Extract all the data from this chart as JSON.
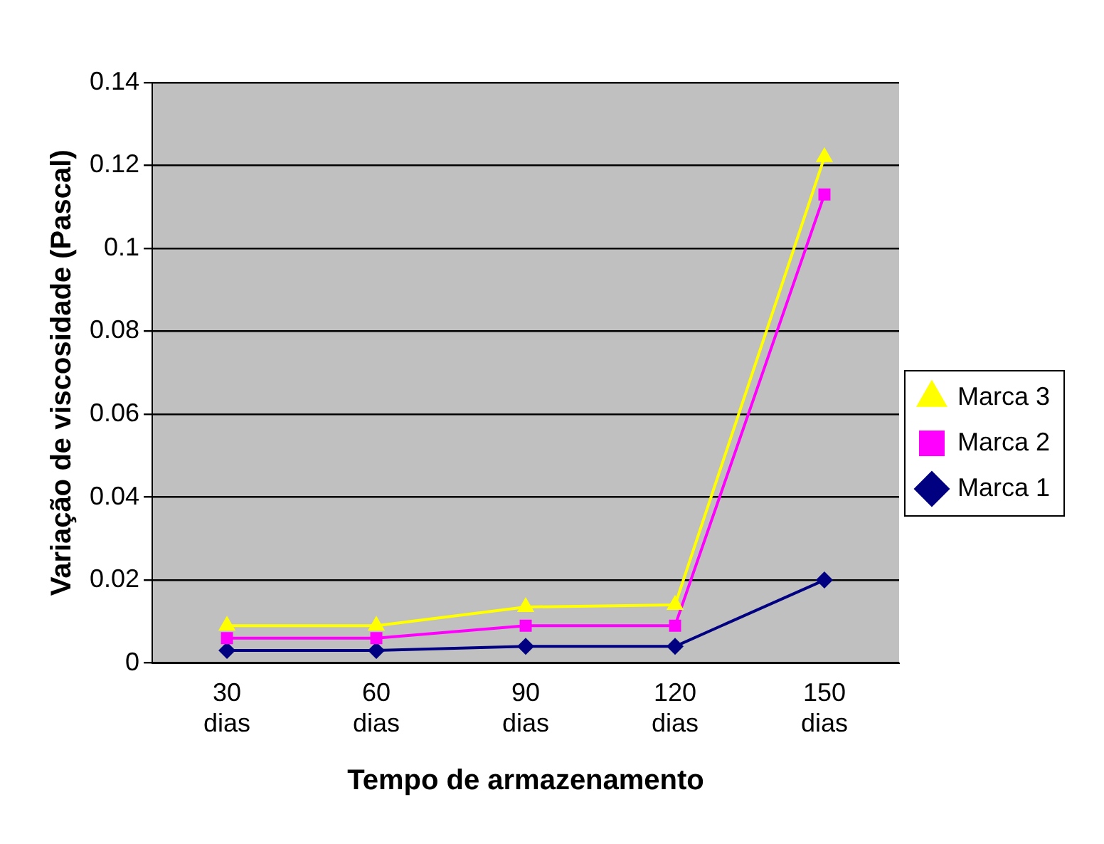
{
  "chart_data": {
    "type": "line",
    "xlabel": "Tempo de armazenamento",
    "ylabel": "Variação de viscosidade (Pascal)",
    "categories": [
      "30 dias",
      "60 dias",
      "90 dias",
      "120 dias",
      "150 dias"
    ],
    "series": [
      {
        "name": "Marca 3",
        "color": "#ffff00",
        "marker": "triangle",
        "values": [
          0.009,
          0.009,
          0.0135,
          0.014,
          0.122
        ]
      },
      {
        "name": "Marca 2",
        "color": "#ff00ff",
        "marker": "square",
        "values": [
          0.006,
          0.006,
          0.009,
          0.009,
          0.113
        ]
      },
      {
        "name": "Marca 1",
        "color": "#000080",
        "marker": "diamond",
        "values": [
          0.003,
          0.003,
          0.004,
          0.004,
          0.02
        ]
      }
    ],
    "ylim": [
      0,
      0.14
    ],
    "yticks": [
      0,
      0.02,
      0.04,
      0.06,
      0.08,
      0.1,
      0.12,
      0.14
    ],
    "grid": "y",
    "legend": "right"
  }
}
